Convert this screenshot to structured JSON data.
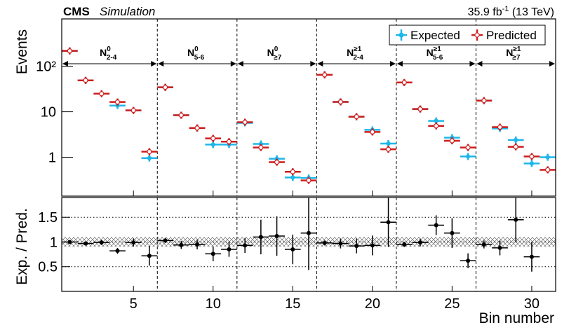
{
  "chart_data": {
    "type": "hist_ratio",
    "experiment": "CMS",
    "subtitle": "Simulation",
    "lumi": {
      "main": "35.9 fb",
      "sup": "-1",
      "rest": " (13 TeV)"
    },
    "y_label": "Events",
    "ratio_label": "Exp. / Pred.",
    "x_label": "Bin number",
    "x": [
      1,
      2,
      3,
      4,
      5,
      6,
      7,
      8,
      9,
      10,
      11,
      12,
      13,
      14,
      15,
      16,
      17,
      18,
      19,
      20,
      21,
      22,
      23,
      24,
      25,
      26,
      27,
      28,
      29,
      30,
      31
    ],
    "xlim": [
      0.5,
      31.5
    ],
    "xticks": [
      5,
      10,
      15,
      20,
      25,
      30
    ],
    "ylim": [
      0.14,
      1100
    ],
    "log_y": true,
    "yticks": [
      1,
      10,
      {
        "value": 100,
        "label": "10²"
      }
    ],
    "series": [
      {
        "name": "Expected",
        "color": "#1db7ea",
        "values": [
          218,
          49,
          25,
          13.7,
          10.7,
          0.96,
          34.5,
          8.4,
          4.4,
          1.9,
          1.9,
          5.7,
          1.96,
          0.93,
          0.36,
          0.35,
          65,
          16.5,
          7.8,
          4.0,
          2.0,
          44,
          11.5,
          6.3,
          2.7,
          1.04,
          17.6,
          4.3,
          2.4,
          0.73,
          1.0
        ]
      },
      {
        "name": "Predicted",
        "color": "#cf1c1c",
        "values": [
          218,
          49,
          25,
          16.4,
          10.7,
          1.33,
          34.5,
          8.4,
          4.4,
          2.6,
          2.2,
          5.9,
          1.64,
          0.78,
          0.48,
          0.31,
          65,
          16.5,
          7.8,
          3.6,
          1.5,
          44,
          11.5,
          4.9,
          2.3,
          1.64,
          17.6,
          4.6,
          1.7,
          1.04,
          0.53
        ]
      }
    ],
    "legend": "upper right",
    "regions": [
      {
        "name": "N",
        "sup": "0",
        "sub": "2-4"
      },
      {
        "name": "N",
        "sup": "0",
        "sub": "5-6"
      },
      {
        "name": "N",
        "sup": "0",
        "sub": "≥7"
      },
      {
        "name": "N",
        "sup": "≥1",
        "sub": "2-4"
      },
      {
        "name": "N",
        "sup": "≥1",
        "sub": "5-6"
      },
      {
        "name": "N",
        "sup": "≥1",
        "sub": "≥7"
      }
    ],
    "dividers": [
      6.5,
      11.5,
      16.5,
      21.5,
      26.5
    ],
    "ratio": {
      "values": [
        1.0,
        0.97,
        0.99,
        0.82,
        0.99,
        0.72,
        1.03,
        0.94,
        0.95,
        0.76,
        0.85,
        0.93,
        1.1,
        1.12,
        0.85,
        1.18,
        0.98,
        0.97,
        0.92,
        0.93,
        1.4,
        0.95,
        0.99,
        1.34,
        1.18,
        0.62,
        0.95,
        0.88,
        1.45,
        0.7,
        null
      ],
      "errors": [
        0.04,
        0.04,
        0.05,
        0.06,
        0.08,
        0.2,
        0.05,
        0.08,
        0.1,
        0.15,
        0.15,
        0.15,
        0.35,
        0.4,
        0.3,
        0.75,
        0.05,
        0.1,
        0.15,
        0.2,
        0.5,
        0.05,
        0.08,
        0.2,
        0.3,
        0.15,
        0.08,
        0.15,
        0.45,
        0.3,
        null
      ],
      "color": "#000000"
    },
    "ratio_ylim": [
      0,
      1.9
    ],
    "ratio_yticks": [
      0.5,
      1,
      1.5
    ],
    "ratio_band": [
      0.9,
      1.1
    ]
  }
}
